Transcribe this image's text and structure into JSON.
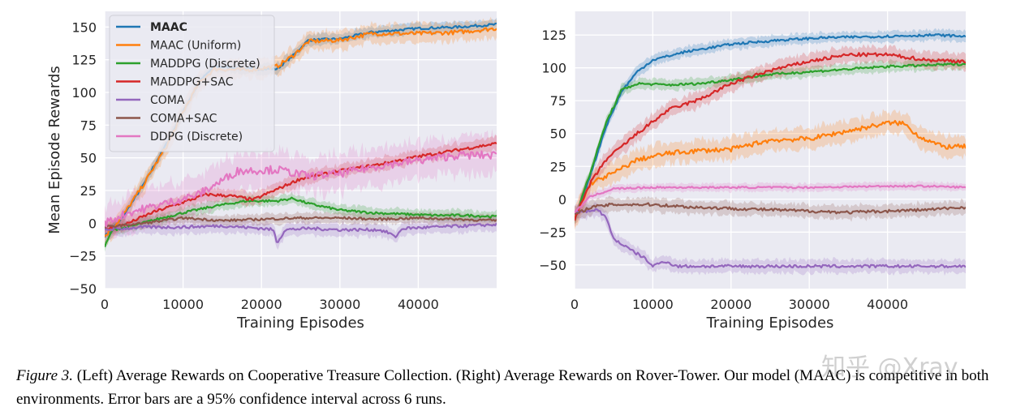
{
  "caption": {
    "figure_label": "Figure 3.",
    "text": " (Left) Average Rewards on Cooperative Treasure Collection. (Right) Average Rewards on Rover-Tower. Our model (MAAC) is competitive in both environments. Error bars are a 95% confidence interval across 6 runs."
  },
  "watermark": "知乎 @Xray",
  "colors": {
    "MAAC": "#1f77b4",
    "MAAC (Uniform)": "#ff7f0e",
    "MADDPG (Discrete)": "#2ca02c",
    "MADDPG+SAC": "#d62728",
    "COMA": "#9467bd",
    "COMA+SAC": "#8c564b",
    "DDPG (Discrete)": "#e377c2"
  },
  "chart_data": [
    {
      "type": "line",
      "title": "",
      "xlabel": "Training Episodes",
      "ylabel": "Mean Episode Rewards",
      "xlim": [
        0,
        50000
      ],
      "ylim": [
        -50,
        162
      ],
      "xticks": [
        0,
        10000,
        20000,
        30000,
        40000
      ],
      "yticks": [
        -50,
        -25,
        0,
        25,
        50,
        75,
        100,
        125,
        150
      ],
      "grid": true,
      "legend": "top-left",
      "series": [
        {
          "name": "MAAC",
          "bold": true,
          "band": 4,
          "points": [
            [
              0,
              -10
            ],
            [
              2000,
              2
            ],
            [
              5000,
              30
            ],
            [
              8000,
              62
            ],
            [
              10000,
              85
            ],
            [
              12000,
              108
            ],
            [
              14000,
              120
            ],
            [
              18000,
              118
            ],
            [
              22000,
              118
            ],
            [
              24000,
              128
            ],
            [
              26000,
              140
            ],
            [
              30000,
              141
            ],
            [
              34000,
              146
            ],
            [
              40000,
              149
            ],
            [
              45000,
              150
            ],
            [
              50000,
              152
            ]
          ]
        },
        {
          "name": "MAAC (Uniform)",
          "band": 7,
          "points": [
            [
              0,
              -10
            ],
            [
              2000,
              3
            ],
            [
              5000,
              30
            ],
            [
              8000,
              60
            ],
            [
              10000,
              85
            ],
            [
              12000,
              107
            ],
            [
              14000,
              118
            ],
            [
              18000,
              117
            ],
            [
              22000,
              120
            ],
            [
              24000,
              128
            ],
            [
              26000,
              139
            ],
            [
              30000,
              140
            ],
            [
              34000,
              145
            ],
            [
              40000,
              145
            ],
            [
              45000,
              146
            ],
            [
              50000,
              149
            ]
          ]
        },
        {
          "name": "MADDPG (Discrete)",
          "band": 4,
          "points": [
            [
              0,
              -18
            ],
            [
              1000,
              -5
            ],
            [
              3000,
              -3
            ],
            [
              6000,
              2
            ],
            [
              10000,
              8
            ],
            [
              14000,
              13
            ],
            [
              18000,
              17
            ],
            [
              22000,
              17
            ],
            [
              24000,
              19
            ],
            [
              26000,
              15
            ],
            [
              30000,
              10
            ],
            [
              34000,
              8
            ],
            [
              38000,
              7
            ],
            [
              42000,
              6
            ],
            [
              46000,
              6
            ],
            [
              50000,
              5
            ]
          ]
        },
        {
          "name": "MADDPG+SAC",
          "band": 5,
          "points": [
            [
              0,
              -5
            ],
            [
              3000,
              0
            ],
            [
              6000,
              8
            ],
            [
              10000,
              16
            ],
            [
              13000,
              22
            ],
            [
              16000,
              21
            ],
            [
              19000,
              18
            ],
            [
              22000,
              26
            ],
            [
              25000,
              34
            ],
            [
              30000,
              40
            ],
            [
              35000,
              45
            ],
            [
              40000,
              51
            ],
            [
              45000,
              56
            ],
            [
              50000,
              61
            ]
          ]
        },
        {
          "name": "COMA",
          "band": 5,
          "points": [
            [
              0,
              -5
            ],
            [
              5000,
              -3
            ],
            [
              10000,
              -3
            ],
            [
              15000,
              -2
            ],
            [
              20000,
              -4
            ],
            [
              21500,
              -5
            ],
            [
              22000,
              -15
            ],
            [
              23000,
              -5
            ],
            [
              26000,
              -4
            ],
            [
              30000,
              -5
            ],
            [
              35000,
              -5
            ],
            [
              36500,
              -8
            ],
            [
              37000,
              -11
            ],
            [
              38000,
              -4
            ],
            [
              42000,
              -3
            ],
            [
              46000,
              -2
            ],
            [
              50000,
              -1
            ]
          ]
        },
        {
          "name": "COMA+SAC",
          "band": 4,
          "points": [
            [
              0,
              -3
            ],
            [
              5000,
              0
            ],
            [
              10000,
              4
            ],
            [
              15000,
              2
            ],
            [
              20000,
              3
            ],
            [
              25000,
              4
            ],
            [
              30000,
              4
            ],
            [
              35000,
              3
            ],
            [
              40000,
              4
            ],
            [
              45000,
              3
            ],
            [
              50000,
              2
            ]
          ]
        },
        {
          "name": "DDPG (Discrete)",
          "band": 14,
          "points": [
            [
              0,
              0
            ],
            [
              3000,
              8
            ],
            [
              7000,
              14
            ],
            [
              12000,
              22
            ],
            [
              17000,
              40
            ],
            [
              22000,
              41
            ],
            [
              26000,
              36
            ],
            [
              30000,
              38
            ],
            [
              35000,
              44
            ],
            [
              40000,
              48
            ],
            [
              45000,
              52
            ],
            [
              50000,
              52
            ]
          ]
        }
      ]
    },
    {
      "type": "line",
      "title": "",
      "xlabel": "Training Episodes",
      "ylabel": "",
      "xlim": [
        0,
        50000
      ],
      "ylim": [
        -68,
        143
      ],
      "xticks": [
        0,
        10000,
        20000,
        30000,
        40000
      ],
      "yticks": [
        -50,
        -25,
        0,
        25,
        50,
        75,
        100,
        125
      ],
      "grid": true,
      "legend": "none",
      "series": [
        {
          "name": "MAAC",
          "band": 4,
          "points": [
            [
              0,
              -15
            ],
            [
              2000,
              18
            ],
            [
              4000,
              55
            ],
            [
              6000,
              82
            ],
            [
              8000,
              97
            ],
            [
              10000,
              106
            ],
            [
              14000,
              112
            ],
            [
              20000,
              118
            ],
            [
              26000,
              121
            ],
            [
              32000,
              123
            ],
            [
              40000,
              124
            ],
            [
              46000,
              125
            ],
            [
              50000,
              124
            ]
          ]
        },
        {
          "name": "MAAC (Uniform)",
          "band": 8,
          "points": [
            [
              0,
              -15
            ],
            [
              2000,
              12
            ],
            [
              5000,
              20
            ],
            [
              8000,
              30
            ],
            [
              12000,
              35
            ],
            [
              16000,
              37
            ],
            [
              20000,
              38
            ],
            [
              25000,
              45
            ],
            [
              30000,
              46
            ],
            [
              35000,
              52
            ],
            [
              40000,
              58
            ],
            [
              42000,
              58
            ],
            [
              44000,
              48
            ],
            [
              47000,
              40
            ],
            [
              50000,
              40
            ]
          ]
        },
        {
          "name": "MADDPG (Discrete)",
          "band": 4,
          "points": [
            [
              0,
              -15
            ],
            [
              2000,
              20
            ],
            [
              4000,
              58
            ],
            [
              6000,
              83
            ],
            [
              8000,
              88
            ],
            [
              12000,
              87
            ],
            [
              16000,
              88
            ],
            [
              20000,
              91
            ],
            [
              25000,
              95
            ],
            [
              30000,
              97
            ],
            [
              35000,
              99
            ],
            [
              40000,
              101
            ],
            [
              45000,
              102
            ],
            [
              50000,
              103
            ]
          ]
        },
        {
          "name": "MADDPG+SAC",
          "band": 6,
          "points": [
            [
              0,
              -15
            ],
            [
              2000,
              12
            ],
            [
              4000,
              30
            ],
            [
              6000,
              40
            ],
            [
              8000,
              50
            ],
            [
              12000,
              68
            ],
            [
              16000,
              76
            ],
            [
              20000,
              88
            ],
            [
              25000,
              98
            ],
            [
              30000,
              105
            ],
            [
              35000,
              110
            ],
            [
              40000,
              110
            ],
            [
              45000,
              106
            ],
            [
              50000,
              105
            ]
          ]
        },
        {
          "name": "COMA",
          "band": 5,
          "points": [
            [
              0,
              -10
            ],
            [
              3000,
              -8
            ],
            [
              4000,
              -14
            ],
            [
              5000,
              -30
            ],
            [
              7000,
              -38
            ],
            [
              9000,
              -45
            ],
            [
              10000,
              -51
            ],
            [
              11500,
              -47
            ],
            [
              13000,
              -51
            ],
            [
              20000,
              -51
            ],
            [
              30000,
              -51
            ],
            [
              40000,
              -51
            ],
            [
              50000,
              -51
            ]
          ]
        },
        {
          "name": "COMA+SAC",
          "band": 5,
          "points": [
            [
              0,
              -12
            ],
            [
              2000,
              -6
            ],
            [
              5000,
              -4
            ],
            [
              10000,
              -4
            ],
            [
              15000,
              -6
            ],
            [
              20000,
              -7
            ],
            [
              25000,
              -8
            ],
            [
              30000,
              -9
            ],
            [
              35000,
              -10
            ],
            [
              40000,
              -9
            ],
            [
              45000,
              -8
            ],
            [
              50000,
              -6
            ]
          ]
        },
        {
          "name": "DDPG (Discrete)",
          "band": 3,
          "points": [
            [
              0,
              -10
            ],
            [
              2000,
              2
            ],
            [
              5000,
              8
            ],
            [
              10000,
              9
            ],
            [
              20000,
              9
            ],
            [
              30000,
              9
            ],
            [
              40000,
              10
            ],
            [
              45000,
              10
            ],
            [
              50000,
              9
            ]
          ]
        }
      ]
    }
  ]
}
